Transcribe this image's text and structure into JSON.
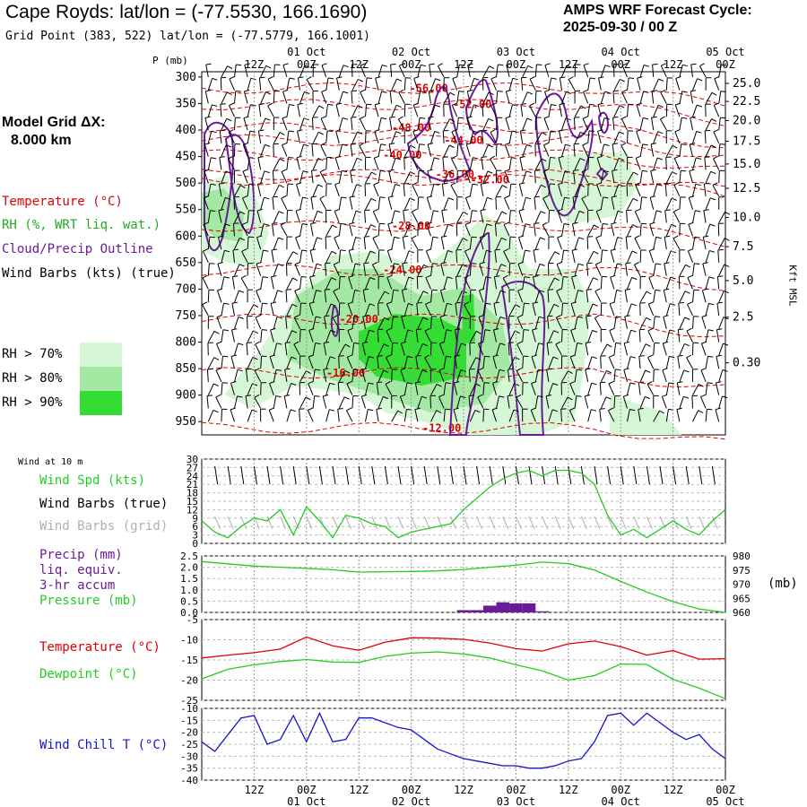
{
  "header": {
    "title": "Cape Royds:  lat/lon = (-77.5530, 166.1690)",
    "grid_point": "Grid Point (383, 522) lat/lon = (-77.5779, 166.1001)",
    "cycle_line1": "AMPS WRF Forecast Cycle:",
    "cycle_line2": "2025-09-30 / 00  Z"
  },
  "sidebar": {
    "model_grid_line1": "Model Grid ΔX:",
    "model_grid_line2": "8.000 km",
    "legend_temperature": "Temperature (°C)",
    "legend_rh": "RH (%, WRT liq. wat.)",
    "legend_cloud": "Cloud/Precip Outline",
    "legend_wind": "Wind Barbs (kts) (true)",
    "rh_70": "RH > 70%",
    "rh_80": "RH > 80%",
    "rh_90": "RH > 90%"
  },
  "colors": {
    "temperature": "#e00000",
    "rh70": "#d6f7d6",
    "rh80": "#a3e8a3",
    "rh90": "#33dd33",
    "cloud": "#6a1b9a",
    "wind_speed": "#22cc22",
    "wind_chill": "#1515c8",
    "pressure": "#22cc22",
    "dewpoint": "#22cc22",
    "grid_barbs": "#b0b0b0",
    "precip": "#6a1b9a"
  },
  "time_axis": {
    "hours": [
      12,
      24,
      36,
      48,
      60,
      72,
      84,
      96,
      108,
      120
    ],
    "labels": [
      "12Z",
      "00Z",
      "12Z",
      "00Z",
      "12Z",
      "00Z",
      "12Z",
      "00Z",
      "12Z",
      "00Z"
    ],
    "date_labels": [
      {
        "hour": 24,
        "text": "01 Oct"
      },
      {
        "hour": 48,
        "text": "02 Oct"
      },
      {
        "hour": 72,
        "text": "03 Oct"
      },
      {
        "hour": 96,
        "text": "04 Oct"
      },
      {
        "hour": 120,
        "text": "05 Oct"
      }
    ]
  },
  "chart_data": [
    {
      "type": "contour",
      "pressure_axis_label": "P (mb)",
      "pressure_ticks": [
        300,
        350,
        400,
        450,
        500,
        550,
        600,
        650,
        700,
        750,
        800,
        850,
        900,
        950
      ],
      "height_axis_label": "Kft MSL",
      "height_ticks": [
        {
          "p": 312,
          "label": "25.0"
        },
        {
          "p": 346,
          "label": "22.5"
        },
        {
          "p": 382,
          "label": "20.0"
        },
        {
          "p": 421,
          "label": "17.5"
        },
        {
          "p": 464,
          "label": "15.0"
        },
        {
          "p": 510,
          "label": "12.5"
        },
        {
          "p": 565,
          "label": "10.0"
        },
        {
          "p": 620,
          "label": "7.5"
        },
        {
          "p": 684,
          "label": "5.0"
        },
        {
          "p": 753,
          "label": "2.5"
        },
        {
          "p": 839,
          "label": "0.30"
        }
      ],
      "temperature_labels": [
        {
          "t": 52,
          "p": 321,
          "text": "-56.00"
        },
        {
          "t": 62,
          "p": 352,
          "text": "-52.00"
        },
        {
          "t": 48,
          "p": 396,
          "text": "-48.00"
        },
        {
          "t": 60,
          "p": 419,
          "text": "-44.00"
        },
        {
          "t": 46,
          "p": 447,
          "text": "-40.00"
        },
        {
          "t": 58,
          "p": 484,
          "text": "-36.00"
        },
        {
          "t": 66,
          "p": 494,
          "text": "-32.00"
        },
        {
          "t": 48,
          "p": 581,
          "text": "-28.00"
        },
        {
          "t": 46,
          "p": 664,
          "text": "-24.00"
        },
        {
          "t": 36,
          "p": 757,
          "text": "-20.00"
        },
        {
          "t": 33,
          "p": 858,
          "text": "-16.00"
        },
        {
          "t": 55,
          "p": 962,
          "text": "-12.00"
        }
      ]
    },
    {
      "type": "line",
      "panel_label": "Wind at 10 m",
      "series_labels": [
        "Wind Spd (kts)",
        "Wind Barbs (true)",
        "Wind Barbs (grid)"
      ],
      "ylim": [
        0,
        30
      ],
      "yticks": [
        0,
        3,
        6,
        9,
        12,
        15,
        18,
        21,
        24,
        27,
        30
      ],
      "x_hours": [
        0,
        3,
        6,
        9,
        12,
        15,
        18,
        21,
        24,
        27,
        30,
        33,
        36,
        39,
        42,
        45,
        48,
        51,
        54,
        57,
        60,
        63,
        66,
        69,
        72,
        75,
        78,
        81,
        84,
        87,
        90,
        93,
        96,
        99,
        102,
        105,
        108,
        111,
        114,
        117,
        120
      ],
      "wind_speed": [
        8,
        4,
        2,
        6,
        9,
        8,
        12,
        3,
        13,
        8,
        2,
        10,
        9,
        7,
        6,
        2,
        4,
        5,
        6,
        7,
        12,
        16,
        20,
        23,
        25,
        26,
        24,
        26,
        26,
        25,
        21,
        10,
        3,
        5,
        2,
        5,
        8,
        5,
        3,
        8,
        12
      ]
    },
    {
      "type": "line_bar",
      "series_labels": [
        "Precip (mm)",
        "liq. equiv.",
        "3-hr accum",
        "Pressure (mb)"
      ],
      "precip_ylim": [
        0,
        2.5
      ],
      "precip_yticks": [
        "0.0",
        "0.5",
        "1.0",
        "1.5",
        "2.0",
        "2.5"
      ],
      "pressure_ylim": [
        960,
        980
      ],
      "pressure_yticks": [
        960,
        965,
        970,
        975,
        980
      ],
      "pressure_unit": "(mb)",
      "x_hours": [
        0,
        6,
        12,
        18,
        24,
        30,
        36,
        42,
        48,
        54,
        60,
        66,
        72,
        78,
        84,
        90,
        96,
        102,
        108,
        114,
        120
      ],
      "pressure": [
        978,
        977.2,
        976.4,
        976.0,
        975.6,
        975.1,
        974.3,
        974.4,
        974.5,
        974.7,
        975.2,
        976.0,
        976.7,
        977.8,
        977.3,
        975.0,
        971.0,
        967.2,
        963.8,
        961.2,
        960.0
      ],
      "precip_bars": [
        {
          "hour": 60,
          "value": 0.1
        },
        {
          "hour": 63,
          "value": 0.1
        },
        {
          "hour": 66,
          "value": 0.3
        },
        {
          "hour": 69,
          "value": 0.45
        },
        {
          "hour": 72,
          "value": 0.4
        },
        {
          "hour": 75,
          "value": 0.4
        },
        {
          "hour": 78,
          "value": 0.05
        }
      ]
    },
    {
      "type": "line",
      "series_labels": [
        "Temperature (°C)",
        "Dewpoint (°C)"
      ],
      "ylim": [
        -25,
        -5
      ],
      "yticks": [
        -5,
        -10,
        -15,
        -20,
        -25
      ],
      "x_hours": [
        0,
        6,
        12,
        18,
        24,
        30,
        36,
        42,
        48,
        54,
        60,
        66,
        72,
        78,
        84,
        90,
        96,
        102,
        108,
        114,
        120
      ],
      "temperature": [
        -14.5,
        -13.8,
        -13.2,
        -12.3,
        -9.3,
        -11.5,
        -12.6,
        -10.6,
        -9.5,
        -9.6,
        -9.9,
        -10.8,
        -12.2,
        -12.8,
        -11.0,
        -10.3,
        -11.7,
        -13.8,
        -12.7,
        -14.8,
        -14.7
      ],
      "dewpoint": [
        -19.7,
        -17.3,
        -16.2,
        -15.4,
        -14.9,
        -15.5,
        -15.6,
        -14.1,
        -13.3,
        -13.0,
        -13.5,
        -14.5,
        -16.2,
        -17.7,
        -20.0,
        -18.9,
        -16.0,
        -16.1,
        -19.8,
        -22.0,
        -24.6
      ]
    },
    {
      "type": "line",
      "series_labels": [
        "Wind Chill T (°C)"
      ],
      "ylim": [
        -40,
        -10
      ],
      "yticks": [
        -10,
        -15,
        -20,
        -25,
        -30,
        -35,
        -40
      ],
      "x_hours": [
        0,
        3,
        6,
        9,
        12,
        15,
        18,
        21,
        24,
        27,
        30,
        33,
        36,
        39,
        42,
        45,
        48,
        51,
        54,
        57,
        60,
        63,
        66,
        69,
        72,
        75,
        78,
        81,
        84,
        87,
        90,
        93,
        96,
        99,
        102,
        105,
        108,
        111,
        114,
        117,
        120
      ],
      "wind_chill": [
        -24,
        -28,
        -21,
        -14,
        -13,
        -25,
        -23,
        -13,
        -24,
        -12,
        -24,
        -23,
        -14,
        -14,
        -16,
        -18,
        -19,
        -23,
        -27,
        -29,
        -31,
        -32,
        -33,
        -34,
        -34,
        -35,
        -35,
        -34,
        -32,
        -31,
        -24,
        -13,
        -12,
        -17,
        -12,
        -16,
        -20,
        -23,
        -21,
        -27,
        -31
      ]
    }
  ]
}
